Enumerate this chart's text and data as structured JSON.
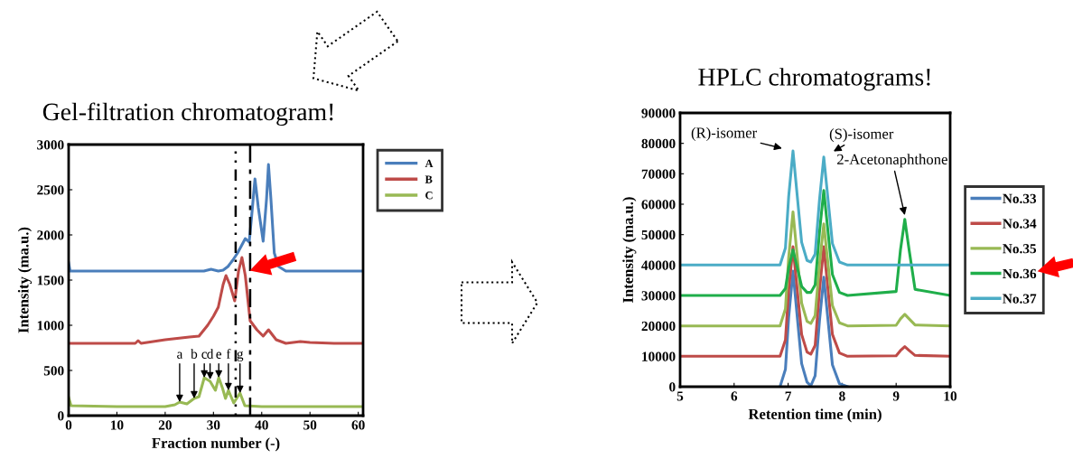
{
  "chart_data": [
    {
      "type": "line",
      "title": "Gel-filtration chromatogram!",
      "xlabel": "Fraction number (-)",
      "ylabel": "Intensity (ma.u.)",
      "xlim": [
        0,
        61
      ],
      "xticks": [
        0,
        10,
        20,
        30,
        40,
        50,
        60
      ],
      "ylim": [
        0,
        3000
      ],
      "yticks": [
        0,
        500,
        1000,
        1500,
        2000,
        2500,
        3000
      ],
      "grid": false,
      "legend": "top right",
      "marker": "none",
      "line_style": "solid",
      "series": [
        {
          "name": "A",
          "color": "#4a7ebb",
          "x": [
            0,
            0.3,
            1,
            10,
            20,
            28,
            29.5,
            31,
            32,
            33,
            34,
            35,
            35.8,
            36.6,
            37.4,
            37.9,
            38.6,
            39.3,
            40.3,
            41.0,
            41.4,
            41.9,
            42.6,
            43.5,
            45,
            50,
            55,
            61
          ],
          "values": [
            1690,
            1600,
            1600,
            1600,
            1600,
            1600,
            1620,
            1600,
            1610,
            1650,
            1720,
            1800,
            1880,
            1960,
            1920,
            2200,
            2620,
            2300,
            1930,
            2400,
            2780,
            2400,
            1800,
            1650,
            1600,
            1600,
            1600,
            1600
          ]
        },
        {
          "name": "B",
          "color": "#be4b48",
          "x": [
            0,
            10,
            13.8,
            14.4,
            15,
            20,
            25,
            27,
            28.8,
            30,
            31,
            32,
            32.6,
            33.4,
            34.4,
            35.2,
            35.9,
            36.6,
            37.6,
            39,
            40.3,
            41.4,
            43,
            45,
            48,
            50,
            55,
            61
          ],
          "values": [
            800,
            800,
            800,
            830,
            800,
            840,
            870,
            880,
            1000,
            1100,
            1200,
            1450,
            1550,
            1450,
            1270,
            1600,
            1750,
            1550,
            1050,
            950,
            880,
            950,
            840,
            800,
            820,
            810,
            800,
            800
          ]
        },
        {
          "name": "C",
          "color": "#98b954",
          "x": [
            0,
            0.5,
            10,
            20,
            22,
            23,
            24.5,
            26,
            27,
            28.1,
            29.3,
            30.4,
            31.1,
            31.9,
            32.5,
            33.1,
            34.2,
            35.5,
            36.5,
            40,
            61
          ],
          "values": [
            200,
            110,
            100,
            100,
            120,
            150,
            130,
            190,
            210,
            420,
            380,
            280,
            420,
            300,
            190,
            280,
            140,
            250,
            110,
            100,
            100
          ]
        }
      ],
      "ref_lines": [
        {
          "axis": "x",
          "value": 34.6,
          "color": "#000000",
          "line_style": "dotted"
        },
        {
          "axis": "x",
          "value": 37.6,
          "color": "#000000",
          "line_style": "dashed"
        }
      ],
      "annotations": [
        {
          "text": "a",
          "x": 23,
          "y": 150
        },
        {
          "text": "b",
          "x": 26,
          "y": 190
        },
        {
          "text": "c",
          "x": 28.1,
          "y": 420
        },
        {
          "text": "d",
          "x": 29.3,
          "y": 400
        },
        {
          "text": "e",
          "x": 31.1,
          "y": 420
        },
        {
          "text": "f",
          "x": 33.1,
          "y": 280
        },
        {
          "text": "g",
          "x": 35.5,
          "y": 250
        }
      ]
    },
    {
      "type": "line",
      "title": "HPLC chromatograms!",
      "xlabel": "Retention time (min)",
      "ylabel": "Intensity (ma.u.)",
      "xlim": [
        5,
        10
      ],
      "xticks": [
        5,
        6,
        7,
        8,
        9,
        10
      ],
      "ylim": [
        0,
        90000
      ],
      "yticks": [
        0,
        10000,
        20000,
        30000,
        40000,
        50000,
        60000,
        70000,
        80000,
        90000
      ],
      "grid": false,
      "legend": "right",
      "marker": "none",
      "line_style": "solid",
      "x": [
        5,
        6.85,
        6.95,
        7.01,
        7.09,
        7.17,
        7.25,
        7.35,
        7.42,
        7.5,
        7.58,
        7.66,
        7.74,
        7.82,
        7.95,
        8.1,
        9.0,
        9.08,
        9.16,
        9.24,
        9.35,
        10
      ],
      "series": [
        {
          "name": "No.33",
          "color": "#4a7ebb",
          "values": [
            null,
            0,
            5700,
            22800,
            38000,
            22800,
            7600,
            1500,
            300,
            3600,
            21600,
            36000,
            21600,
            7200,
            1000,
            0,
            null,
            null,
            null,
            null,
            null,
            null
          ]
        },
        {
          "name": "No.34",
          "color": "#be4b48",
          "values": [
            10000,
            10000,
            15400,
            31600,
            46000,
            31600,
            17200,
            11400,
            10700,
            13600,
            31600,
            46000,
            31600,
            17200,
            11100,
            10000,
            10200,
            11900,
            13200,
            11900,
            10300,
            10000
          ]
        },
        {
          "name": "No.35",
          "color": "#98b954",
          "values": [
            20000,
            20000,
            25600,
            42500,
            57500,
            42500,
            27500,
            21500,
            20800,
            23400,
            40100,
            53500,
            40100,
            26700,
            21000,
            20000,
            20200,
            22300,
            23800,
            22300,
            20300,
            20000
          ]
        },
        {
          "name": "No.36",
          "color": "#1fae4a",
          "values": [
            30000,
            30000,
            32300,
            39000,
            45000,
            39000,
            33000,
            31000,
            31000,
            33500,
            50700,
            64500,
            50700,
            36900,
            31000,
            30000,
            31300,
            45000,
            55000,
            45000,
            32000,
            30000
          ]
        },
        {
          "name": "No.37",
          "color": "#4bacc6",
          "values": [
            40000,
            40000,
            45600,
            62500,
            77500,
            62500,
            47500,
            41500,
            41000,
            43600,
            61300,
            75500,
            61300,
            47100,
            41000,
            40000,
            40000,
            40000,
            40000,
            40000,
            40000,
            40000
          ]
        }
      ],
      "annotations": [
        {
          "text": "(R)-isomer",
          "x": 7.09,
          "y": 77500
        },
        {
          "text": "(S)-isomer",
          "x": 7.66,
          "y": 75500
        },
        {
          "text": "2-Acetonaphthone",
          "x": 9.16,
          "y": 56400
        }
      ]
    }
  ]
}
